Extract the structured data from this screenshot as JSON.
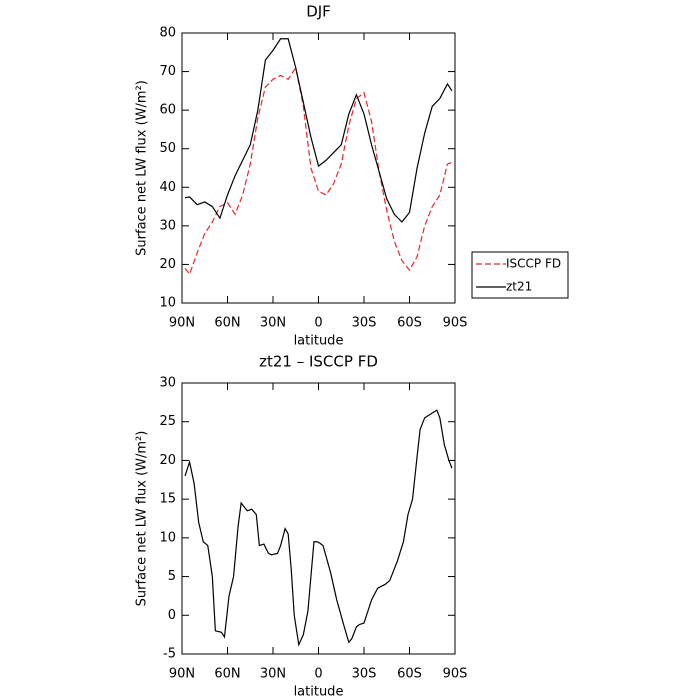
{
  "chart_data": [
    {
      "type": "line",
      "title": "DJF",
      "xlabel": "latitude",
      "ylabel": "Surface net LW flux (W/m²)",
      "x": [
        88,
        85,
        80,
        75,
        70,
        65,
        60,
        55,
        50,
        45,
        40,
        35,
        30,
        25,
        20,
        15,
        10,
        5,
        0,
        -5,
        -10,
        -15,
        -20,
        -25,
        -30,
        -35,
        -40,
        -45,
        -50,
        -55,
        -60,
        -65,
        -70,
        -75,
        -80,
        -85,
        -88
      ],
      "series": [
        {
          "name": "ISCCP FD",
          "color": "#e8262a",
          "dash": true,
          "values": [
            19,
            17.5,
            23,
            28,
            31,
            35,
            36,
            33,
            38,
            46,
            58,
            66,
            68,
            69,
            68,
            71,
            61,
            45,
            39,
            38,
            41,
            46,
            56,
            63,
            64.5,
            57,
            44,
            34,
            26,
            21,
            18.5,
            22,
            30,
            35,
            38,
            46,
            46.5
          ]
        },
        {
          "name": "zt21",
          "color": "#000000",
          "dash": false,
          "values": [
            37.3,
            37.5,
            35.5,
            36.2,
            35,
            32,
            38,
            43,
            47,
            51,
            60,
            73,
            75.5,
            78.5,
            78.5,
            71,
            62,
            53,
            45.5,
            47,
            49,
            51,
            59,
            64,
            59,
            51,
            44,
            37,
            33,
            31,
            33.5,
            45,
            54,
            61,
            63,
            66.8,
            65
          ]
        }
      ],
      "xlim": [
        90,
        -90
      ],
      "xticks": [
        {
          "value": 90,
          "label": "90N"
        },
        {
          "value": 60,
          "label": "60N"
        },
        {
          "value": 30,
          "label": "30N"
        },
        0,
        {
          "value": -30,
          "label": "30S"
        },
        {
          "value": -60,
          "label": "60S"
        },
        {
          "value": -90,
          "label": "90S"
        }
      ],
      "ylim": [
        10,
        80
      ],
      "yticks": [
        10,
        20,
        30,
        40,
        50,
        60,
        70,
        80
      ],
      "legend": "right"
    },
    {
      "type": "line",
      "title": "zt21 – ISCCP FD",
      "xlabel": "latitude",
      "ylabel": "Surface net LW flux (W/m²)",
      "x": [
        88,
        85,
        82,
        79,
        76,
        73,
        70,
        68,
        64,
        62,
        59,
        56,
        53,
        51,
        47,
        44,
        41,
        39,
        36,
        33,
        31,
        27,
        25,
        22,
        20,
        18,
        16,
        13,
        10,
        7,
        5,
        3,
        1,
        -1,
        -3,
        -8,
        -12,
        -17,
        -20,
        -22,
        -25,
        -27,
        -30,
        -35,
        -39,
        -44,
        -47,
        -52,
        -56,
        -59,
        -62,
        -65,
        -67,
        -70,
        -74,
        -78,
        -80,
        -83,
        -86,
        -88
      ],
      "series": [
        {
          "color": "#000000",
          "dash": false,
          "values": [
            18,
            19.8,
            17,
            12,
            9.5,
            9,
            5,
            -2,
            -2.2,
            -2.8,
            2.5,
            5,
            11.5,
            14.5,
            13.5,
            13.7,
            13,
            9,
            9.2,
            8,
            7.8,
            8,
            9,
            11.2,
            10.5,
            6,
            0,
            -3.8,
            -2.5,
            0.5,
            5,
            9.5,
            9.5,
            9.3,
            9,
            5.5,
            2,
            -1.5,
            -3.5,
            -3,
            -1.5,
            -1.2,
            -1,
            2,
            3.5,
            4,
            4.5,
            7,
            9.5,
            13,
            15,
            20.5,
            24,
            25.5,
            26,
            26.5,
            25.5,
            22,
            20,
            19
          ]
        }
      ],
      "xlim": [
        90,
        -90
      ],
      "xticks": [
        {
          "value": 90,
          "label": "90N"
        },
        {
          "value": 60,
          "label": "60N"
        },
        {
          "value": 30,
          "label": "30N"
        },
        0,
        {
          "value": -30,
          "label": "30S"
        },
        {
          "value": -60,
          "label": "60S"
        },
        {
          "value": -90,
          "label": "90S"
        }
      ],
      "ylim": [
        -5,
        30
      ],
      "yticks": [
        -5,
        0,
        5,
        10,
        15,
        20,
        25,
        30
      ]
    }
  ]
}
